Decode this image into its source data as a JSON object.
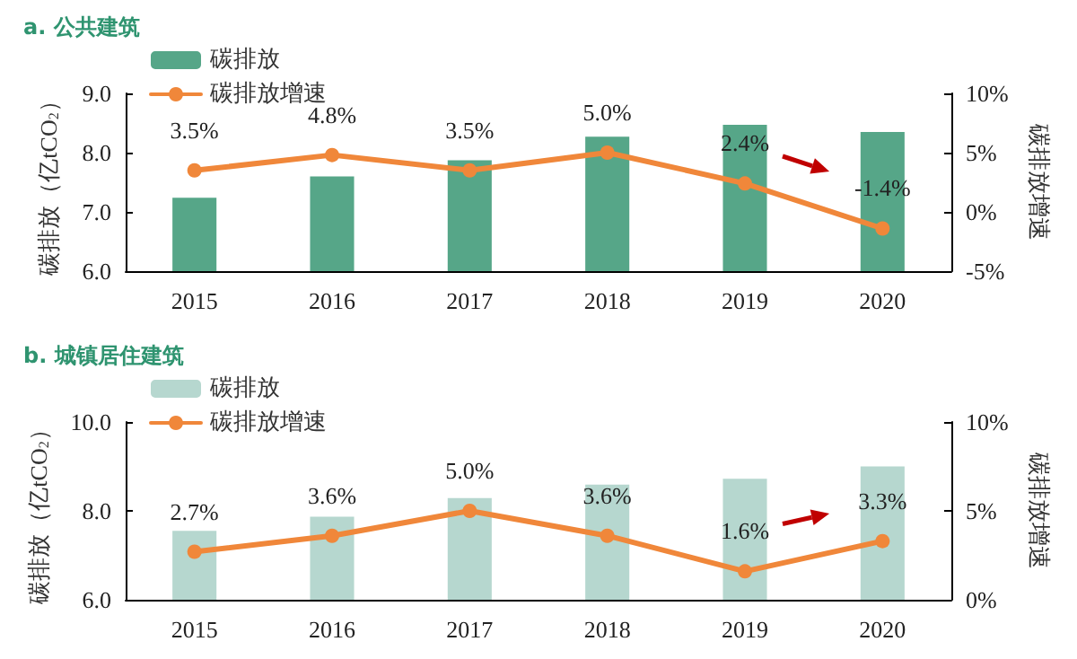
{
  "chart_data": [
    {
      "type": "bar",
      "title": "a. 公共建筑",
      "ylabel": "碳排放（亿tCO$_{2}$）",
      "y2label": "碳排放增速",
      "categories": [
        "2015",
        "2016",
        "2017",
        "2018",
        "2019",
        "2020"
      ],
      "series": [
        {
          "name": "碳排放",
          "color": "#56a688",
          "values": [
            7.24,
            7.6,
            7.87,
            8.27,
            8.47,
            8.35
          ]
        },
        {
          "name": "碳排放增速",
          "type": "line",
          "axis": "y2",
          "color": "#f0873a",
          "values": [
            3.5,
            4.8,
            3.5,
            5.0,
            2.4,
            -1.4
          ],
          "value_labels": [
            "3.5%",
            "4.8%",
            "3.5%",
            "5.0%",
            "2.4%",
            "-1.4%"
          ]
        }
      ],
      "ylim": [
        6,
        9
      ],
      "yticks": [
        {
          "value": 6,
          "label": "6.0"
        },
        {
          "value": 7,
          "label": "7.0"
        },
        {
          "value": 8,
          "label": "8.0"
        },
        {
          "value": 9,
          "label": "9.0"
        }
      ],
      "y2lim": [
        -5,
        10
      ],
      "y2ticks": [
        {
          "value": -5,
          "label": "-5%"
        },
        {
          "value": 0,
          "label": "0%"
        },
        {
          "value": 5,
          "label": "5%"
        },
        {
          "value": 10,
          "label": "10%"
        }
      ],
      "legend": "top left",
      "grid": false,
      "marker": "circle"
    },
    {
      "type": "bar",
      "title": "b. 城镇居住建筑",
      "ylabel": "碳排放（亿tCO$_{2}$）",
      "y2label": "碳排放增速",
      "categories": [
        "2015",
        "2016",
        "2017",
        "2018",
        "2019",
        "2020"
      ],
      "series": [
        {
          "name": "碳排放",
          "color": "#b6d7cf",
          "values": [
            7.55,
            7.87,
            8.29,
            8.59,
            8.72,
            9.0
          ]
        },
        {
          "name": "碳排放增速",
          "type": "line",
          "axis": "y2",
          "color": "#f0873a",
          "values": [
            2.7,
            3.6,
            5.0,
            3.6,
            1.6,
            3.3
          ],
          "value_labels": [
            "2.7%",
            "3.6%",
            "5.0%",
            "3.6%",
            "1.6%",
            "3.3%"
          ]
        }
      ],
      "ylim": [
        6,
        10
      ],
      "yticks": [
        {
          "value": 6,
          "label": "6.0"
        },
        {
          "value": 8,
          "label": "8.0"
        },
        {
          "value": 10,
          "label": "10.0"
        }
      ],
      "y2lim": [
        0,
        10
      ],
      "y2ticks": [
        {
          "value": 0,
          "label": "0%"
        },
        {
          "value": 5,
          "label": "5%"
        },
        {
          "value": 10,
          "label": "10%"
        }
      ],
      "legend": "top left",
      "grid": false,
      "marker": "circle"
    }
  ]
}
